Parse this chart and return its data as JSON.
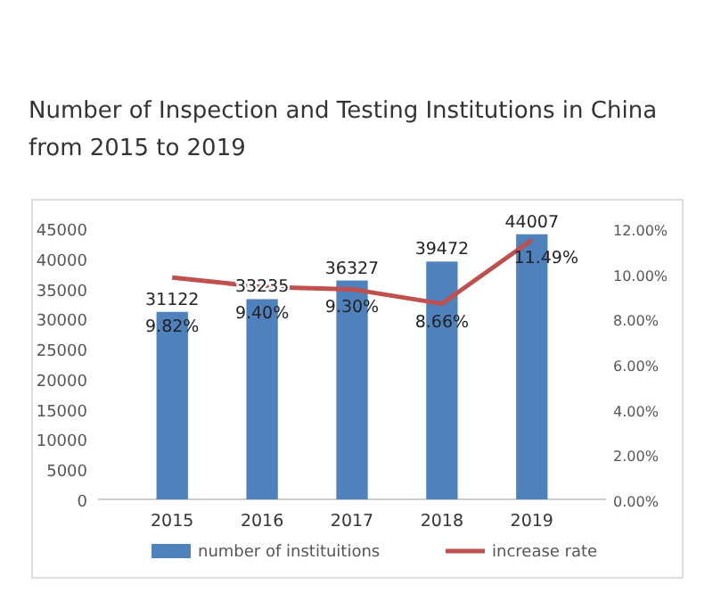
{
  "chart_data": {
    "type": "bar",
    "title": "Number of Inspection and Testing Institutions in China from 2015 to 2019",
    "categories": [
      "2015",
      "2016",
      "2017",
      "2018",
      "2019"
    ],
    "series": [
      {
        "name": "number of instituitions",
        "color": "#4f81bd",
        "values": [
          31122,
          33235,
          36327,
          39472,
          44007
        ],
        "value_labels": [
          "31122",
          "33235",
          "36327",
          "39472",
          "44007"
        ]
      },
      {
        "name": "increase rate",
        "type": "line",
        "axis": "y2",
        "color": "#c0504d",
        "values": [
          9.82,
          9.4,
          9.3,
          8.66,
          11.49
        ],
        "value_labels": [
          "9.82%",
          "9.40%",
          "9.30%",
          "8.66%",
          "11.49%"
        ]
      }
    ],
    "ylim": [
      0,
      45000
    ],
    "yticks": [
      0,
      5000,
      10000,
      15000,
      20000,
      25000,
      30000,
      35000,
      40000,
      45000
    ],
    "y2lim": [
      0,
      12
    ],
    "y2ticks": [
      {
        "value": 0,
        "label": "0.00%"
      },
      {
        "value": 2,
        "label": "2.00%"
      },
      {
        "value": 4,
        "label": "4.00%"
      },
      {
        "value": 6,
        "label": "6.00%"
      },
      {
        "value": 8,
        "label": "8.00%"
      },
      {
        "value": 10,
        "label": "10.00%"
      },
      {
        "value": 12,
        "label": "12.00%"
      }
    ],
    "legend": "bottom",
    "grid": false,
    "marker": "none",
    "line_style": "solid"
  }
}
